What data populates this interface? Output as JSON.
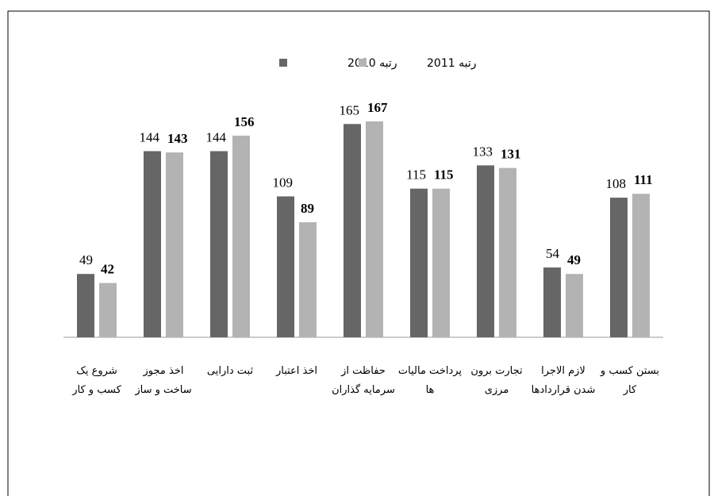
{
  "chart_data": {
    "type": "bar",
    "categories": [
      "شروع یک کسب و کار",
      "اخذ مجوز ساخت و ساز",
      "ثبت دارایی",
      "اخذ اعتبار",
      "حفاظت از سرمایه گذاران",
      "پرداخت مالیات ها",
      "تجارت برون مرزی",
      "لازم الاجرا شدن قراردادها",
      "بستن کسب و کار"
    ],
    "series": [
      {
        "name": "رتبه 2010",
        "color": "#666666",
        "values": [
          49,
          144,
          144,
          109,
          165,
          115,
          133,
          54,
          108
        ]
      },
      {
        "name": "رتبه 2011",
        "color": "#b3b3b3",
        "values": [
          42,
          143,
          156,
          89,
          167,
          115,
          131,
          49,
          111
        ]
      }
    ]
  }
}
